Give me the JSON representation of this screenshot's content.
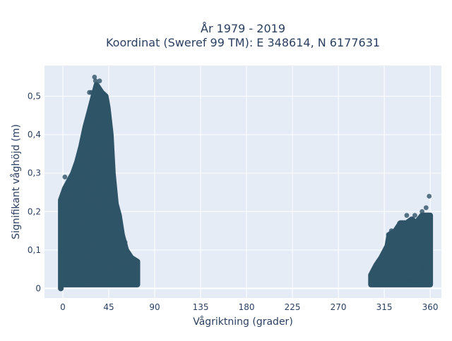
{
  "chart_data": {
    "type": "scatter",
    "title_line1": "År 1979 - 2019",
    "title_line2": "Koordinat (Sweref 99 TM): E 348614, N 6177631",
    "xlabel": "Vågriktning (grader)",
    "ylabel": "Signifikant våghöjd (m)",
    "xlim": [
      -18,
      371
    ],
    "ylim": [
      -0.025,
      0.58
    ],
    "x_ticks": [
      0,
      45,
      90,
      135,
      180,
      225,
      270,
      315,
      360
    ],
    "x_tick_labels": [
      "0",
      "45",
      "90",
      "135",
      "180",
      "225",
      "270",
      "315",
      "360"
    ],
    "y_ticks": [
      0,
      0.1,
      0.2,
      0.3,
      0.4,
      0.5
    ],
    "y_tick_labels": [
      "0",
      "0,1",
      "0,2",
      "0,3",
      "0,4",
      "0,5"
    ],
    "grid": true,
    "colors": {
      "marker": "#2f5468",
      "plot_bg": "#e5ecf6",
      "grid": "#ffffff",
      "text": "#2a3f5f"
    },
    "clusters": [
      {
        "x_range": [
          0,
          73
        ],
        "envelope": [
          [
            -2,
            0.0
          ],
          [
            -2,
            0.23
          ],
          [
            2,
            0.26
          ],
          [
            6,
            0.28
          ],
          [
            10,
            0.3
          ],
          [
            14,
            0.33
          ],
          [
            18,
            0.37
          ],
          [
            22,
            0.42
          ],
          [
            26,
            0.46
          ],
          [
            30,
            0.5
          ],
          [
            33,
            0.53
          ],
          [
            38,
            0.51
          ],
          [
            42,
            0.5
          ],
          [
            44,
            0.47
          ],
          [
            47,
            0.4
          ],
          [
            49,
            0.3
          ],
          [
            52,
            0.22
          ],
          [
            55,
            0.19
          ],
          [
            58,
            0.14
          ],
          [
            62,
            0.1
          ],
          [
            67,
            0.08
          ],
          [
            73,
            0.07
          ],
          [
            73,
            0.01
          ],
          [
            -2,
            0.01
          ]
        ]
      },
      {
        "x_range": [
          302,
          360
        ],
        "envelope": [
          [
            302,
            0.02
          ],
          [
            302,
            0.035
          ],
          [
            307,
            0.06
          ],
          [
            312,
            0.08
          ],
          [
            318,
            0.11
          ],
          [
            320,
            0.14
          ],
          [
            326,
            0.15
          ],
          [
            331,
            0.17
          ],
          [
            337,
            0.17
          ],
          [
            342,
            0.18
          ],
          [
            346,
            0.17
          ],
          [
            352,
            0.19
          ],
          [
            358,
            0.19
          ],
          [
            360,
            0.19
          ],
          [
            360,
            0.01
          ],
          [
            302,
            0.01
          ]
        ]
      }
    ],
    "outliers": [
      [
        31,
        0.55
      ],
      [
        32,
        0.54
      ],
      [
        36,
        0.54
      ],
      [
        26,
        0.51
      ],
      [
        28,
        0.51
      ],
      [
        37,
        0.5
      ],
      [
        40,
        0.5
      ],
      [
        2,
        0.29
      ],
      [
        0,
        0.23
      ],
      [
        10,
        0.3
      ],
      [
        8,
        0.28
      ],
      [
        20,
        0.37
      ],
      [
        55,
        0.18
      ],
      [
        57,
        0.15
      ],
      [
        61,
        0.12
      ],
      [
        65,
        0.09
      ],
      [
        70,
        0.07
      ],
      [
        359,
        0.24
      ],
      [
        356,
        0.21
      ],
      [
        352,
        0.2
      ],
      [
        345,
        0.19
      ],
      [
        337,
        0.19
      ],
      [
        330,
        0.17
      ],
      [
        322,
        0.15
      ],
      [
        319,
        0.14
      ],
      [
        314,
        0.09
      ],
      [
        309,
        0.07
      ],
      [
        304,
        0.03
      ]
    ]
  }
}
